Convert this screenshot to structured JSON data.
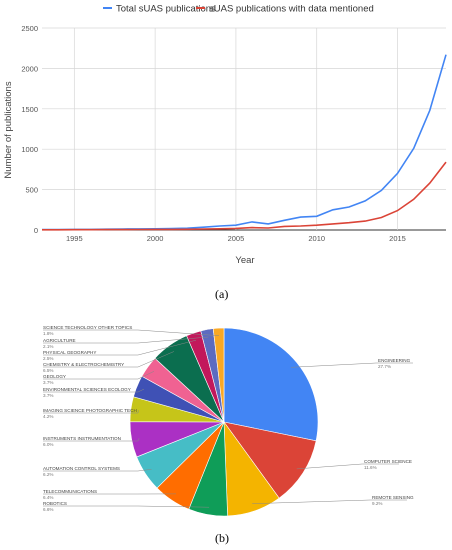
{
  "panels": {
    "a": "(a)",
    "b": "(b)"
  },
  "chart_data": [
    {
      "type": "line",
      "title": "",
      "xlabel": "Year",
      "ylabel": "Number of publications",
      "xlim": [
        1993,
        2018
      ],
      "ylim": [
        0,
        2500
      ],
      "xticks": [
        1995,
        2000,
        2005,
        2010,
        2015
      ],
      "yticks": [
        0,
        500,
        1000,
        1500,
        2000,
        2500
      ],
      "grid": true,
      "legend_position": "top",
      "series": [
        {
          "name": "Total sUAS publications",
          "color": "#4285f4",
          "x": [
            1993,
            1994,
            1995,
            1996,
            1997,
            1998,
            1999,
            2000,
            2001,
            2002,
            2003,
            2004,
            2005,
            2006,
            2007,
            2008,
            2009,
            2010,
            2011,
            2012,
            2013,
            2014,
            2015,
            2016,
            2017,
            2018
          ],
          "y": [
            5,
            6,
            8,
            8,
            10,
            12,
            14,
            15,
            18,
            22,
            35,
            50,
            60,
            100,
            75,
            120,
            160,
            170,
            250,
            285,
            360,
            490,
            700,
            1010,
            1480,
            2170
          ]
        },
        {
          "name": "sUAS publications with data mentioned",
          "color": "#db4437",
          "x": [
            1993,
            1994,
            1995,
            1996,
            1997,
            1998,
            1999,
            2000,
            2001,
            2002,
            2003,
            2004,
            2005,
            2006,
            2007,
            2008,
            2009,
            2010,
            2011,
            2012,
            2013,
            2014,
            2015,
            2016,
            2017,
            2018
          ],
          "y": [
            3,
            3,
            4,
            4,
            5,
            5,
            6,
            7,
            8,
            9,
            12,
            15,
            20,
            30,
            25,
            45,
            50,
            60,
            75,
            90,
            110,
            155,
            240,
            380,
            580,
            840
          ]
        }
      ]
    },
    {
      "type": "pie",
      "slices": [
        {
          "label": "ENGINEERING",
          "pct_label": "27.7%",
          "value": 27.7,
          "color": "#4285f4"
        },
        {
          "label": "COMPUTER SCIENCE",
          "pct_label": "11.6%",
          "value": 11.6,
          "color": "#db4437"
        },
        {
          "label": "REMOTE SENSING",
          "pct_label": "9.2%",
          "value": 9.2,
          "color": "#f4b400"
        },
        {
          "label": "ROBOTICS",
          "pct_label": "6.6%",
          "value": 6.6,
          "color": "#0f9d58"
        },
        {
          "label": "TELECOMMUNICATIONS",
          "pct_label": "6.4%",
          "value": 6.4,
          "color": "#ff6d00"
        },
        {
          "label": "AUTOMATION CONTROL SYSTEMS",
          "pct_label": "6.2%",
          "value": 6.2,
          "color": "#46bdc6"
        },
        {
          "label": "INSTRUMENTS INSTRUMENTATION",
          "pct_label": "6.0%",
          "value": 6.0,
          "color": "#ab30c4"
        },
        {
          "label": "IMAGING SCIENCE PHOTOGRAPHIC TECH",
          "pct_label": "4.2%",
          "value": 4.2,
          "color": "#c6c519"
        },
        {
          "label": "ENVIRONMENTAL SCIENCES ECOLOGY",
          "pct_label": "3.7%",
          "value": 3.7,
          "color": "#3f51b5"
        },
        {
          "label": "GEOLOGY",
          "pct_label": "3.7%",
          "value": 3.7,
          "color": "#f06292"
        },
        {
          "label": "CHEMISTRY & ELECTROCHEMISTRY",
          "pct_label": "6.5%",
          "value": 6.5,
          "color": "#0b6e4f"
        },
        {
          "label": "PHYSICAL GEOGRAPHY",
          "pct_label": "2.5%",
          "value": 2.5,
          "color": "#c2185b"
        },
        {
          "label": "AGRICULTURE",
          "pct_label": "2.1%",
          "value": 2.1,
          "color": "#5c6bc0"
        },
        {
          "label": "SCIENCE TECHNOLOGY OTHER TOPICS",
          "pct_label": "1.8%",
          "value": 1.8,
          "color": "#f9a825"
        }
      ]
    }
  ]
}
